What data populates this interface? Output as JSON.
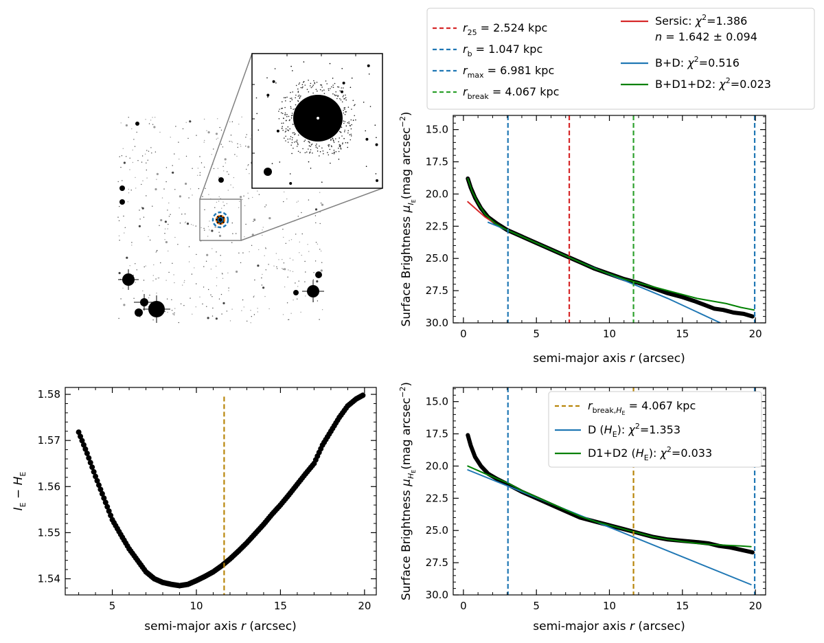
{
  "chart_data": [
    {
      "id": "image_panel",
      "type": "image",
      "description_markers": [
        "target-galaxy",
        "zoom-box",
        "inset-cutout"
      ],
      "colors": {
        "ring_orange": "#d62728",
        "ring_blue": "#1f77b4",
        "ink": "#000000"
      }
    },
    {
      "id": "sb_IE",
      "type": "line",
      "xlabel": "semi-major axis",
      "xlabel_var": "r",
      "xlabel_unit": "(arcsec)",
      "ylabel_prefix": "Surface Brightness",
      "ylabel_unit": "(mag arcsec",
      "xlim": [
        -0.7,
        20.7
      ],
      "ylim": [
        30.0,
        13.9
      ],
      "xticks": [
        0,
        5,
        10,
        15,
        20
      ],
      "xtick_labels": [
        "0",
        "5",
        "10",
        "15",
        "20"
      ],
      "yticks": [
        15.0,
        17.5,
        20.0,
        22.5,
        25.0,
        27.5,
        30.0
      ],
      "ytick_labels": [
        "15.0",
        "17.5",
        "20.0",
        "22.5",
        "25.0",
        "27.5",
        "30.0"
      ],
      "vlines": [
        {
          "name": "r_b",
          "x": 3.05,
          "color": "#1f77b4"
        },
        {
          "name": "r_25",
          "x": 7.25,
          "color": "#d62728"
        },
        {
          "name": "r_break",
          "x": 11.65,
          "color": "#2ca02c"
        },
        {
          "name": "r_max",
          "x": 19.95,
          "color": "#1f77b4"
        }
      ],
      "series": [
        {
          "name": "data",
          "color": "#000000",
          "width": 6,
          "x": [
            0.3,
            0.5,
            0.8,
            1.2,
            1.7,
            2.3,
            3.0,
            4.0,
            5.0,
            6.0,
            7.0,
            8.0,
            9.0,
            10.0,
            11.0,
            12.0,
            13.0,
            14.0,
            15.0,
            15.8,
            16.5,
            17.2,
            17.8,
            18.5,
            19.2,
            19.8
          ],
          "y": [
            18.8,
            19.5,
            20.3,
            21.1,
            21.8,
            22.3,
            22.8,
            23.3,
            23.8,
            24.3,
            24.8,
            25.3,
            25.8,
            26.2,
            26.6,
            26.9,
            27.3,
            27.7,
            28.0,
            28.3,
            28.6,
            28.9,
            29.0,
            29.2,
            29.3,
            29.5
          ]
        },
        {
          "name": "Sersic",
          "color": "#d62728",
          "width": 2,
          "x": [
            0.3,
            0.8,
            1.5,
            2.2,
            3.0,
            4.0,
            5.0,
            6.0,
            7.0,
            8.0
          ],
          "y": [
            20.6,
            21.1,
            21.8,
            22.3,
            22.8,
            23.3,
            23.8,
            24.3,
            24.8,
            25.3
          ]
        },
        {
          "name": "B+D",
          "color": "#1f77b4",
          "width": 2,
          "x": [
            1.7,
            3.0,
            5.0,
            8.0,
            11.0,
            14.0,
            17.6
          ],
          "y": [
            22.2,
            22.8,
            23.8,
            25.3,
            26.7,
            28.1,
            30.0
          ]
        },
        {
          "name": "B+D1+D2",
          "color": "#008000",
          "width": 2,
          "x": [
            0.3,
            0.6,
            1.0,
            1.5,
            2.2,
            3.0,
            4.0,
            5.0,
            6.0,
            7.0,
            8.0,
            9.0,
            10.0,
            11.0,
            12.0,
            13.0,
            14.0,
            15.0,
            16.0,
            17.0,
            18.0,
            19.0,
            19.9
          ],
          "y": [
            18.8,
            19.8,
            20.7,
            21.6,
            22.3,
            22.8,
            23.3,
            23.8,
            24.3,
            24.8,
            25.3,
            25.8,
            26.2,
            26.6,
            26.9,
            27.2,
            27.5,
            27.8,
            28.1,
            28.3,
            28.5,
            28.8,
            29.0
          ]
        }
      ],
      "legend": {
        "position": "top-right, above axes",
        "left_items": [
          {
            "var": "r",
            "sub": "25",
            "text": " = 2.524 kpc",
            "color": "#d62728",
            "style": "dashed"
          },
          {
            "var": "r",
            "sub": "b",
            "text": " = 1.047 kpc",
            "color": "#1f77b4",
            "style": "dashed"
          },
          {
            "var": "r",
            "sub": "max",
            "text": " = 6.981 kpc",
            "color": "#1f77b4",
            "style": "dashed"
          },
          {
            "var": "r",
            "sub": "break",
            "text": " = 4.067 kpc",
            "color": "#2ca02c",
            "style": "dashed"
          }
        ],
        "right_items": [
          {
            "label": "Sersic:",
            "chi_text": "=1.386",
            "line2_var": "n",
            "line2_text": " = 1.642 ± 0.094",
            "color": "#d62728"
          },
          {
            "label": "B+D:",
            "chi_text": "=0.516",
            "color": "#1f77b4"
          },
          {
            "label": "B+D1+D2:",
            "chi_text": "=0.023",
            "color": "#008000"
          }
        ]
      }
    },
    {
      "id": "color_profile",
      "type": "scatter",
      "xlabel": "semi-major axis",
      "xlabel_var": "r",
      "xlabel_unit": "(arcsec)",
      "ylabel_left": "I",
      "ylabel_minus": " − ",
      "ylabel_right": "H",
      "ylabel_sub": "E",
      "xlim": [
        2.2,
        20.7
      ],
      "ylim": [
        1.5365,
        1.5815
      ],
      "xticks": [
        5,
        10,
        15,
        20
      ],
      "xtick_labels": [
        "5",
        "10",
        "15",
        "20"
      ],
      "yticks": [
        1.54,
        1.55,
        1.56,
        1.57,
        1.58
      ],
      "ytick_labels": [
        "1.54",
        "1.55",
        "1.56",
        "1.57",
        "1.58"
      ],
      "vlines": [
        {
          "name": "r_break_HE",
          "x": 11.65,
          "color": "#b8860b"
        }
      ],
      "series": [
        {
          "name": "I_E - H_E",
          "color": "#000000",
          "x": [
            3.0,
            3.5,
            4.0,
            4.5,
            5.0,
            5.5,
            6.0,
            6.5,
            7.0,
            7.5,
            8.0,
            8.5,
            9.0,
            9.5,
            10.0,
            10.5,
            11.0,
            11.5,
            12.0,
            12.5,
            13.0,
            13.5,
            14.0,
            14.5,
            15.0,
            15.5,
            16.0,
            16.5,
            17.0,
            17.5,
            18.0,
            18.5,
            19.0,
            19.5,
            19.9
          ],
          "y": [
            1.5718,
            1.5672,
            1.5622,
            1.5575,
            1.5528,
            1.5496,
            1.5465,
            1.544,
            1.5415,
            1.54,
            1.5392,
            1.5388,
            1.5385,
            1.5388,
            1.5396,
            1.5405,
            1.5415,
            1.5428,
            1.5443,
            1.546,
            1.5478,
            1.5498,
            1.5518,
            1.554,
            1.556,
            1.5582,
            1.5605,
            1.5628,
            1.565,
            1.569,
            1.572,
            1.575,
            1.5775,
            1.579,
            1.5798
          ]
        }
      ]
    },
    {
      "id": "sb_HE",
      "type": "line",
      "xlabel": "semi-major axis",
      "xlabel_var": "r",
      "xlabel_unit": "(arcsec)",
      "ylabel_prefix": "Surface Brightness",
      "ylabel_unit": "(mag arcsec",
      "xlim": [
        -0.7,
        20.7
      ],
      "ylim": [
        30.0,
        13.9
      ],
      "xticks": [
        0,
        5,
        10,
        15,
        20
      ],
      "xtick_labels": [
        "0",
        "5",
        "10",
        "15",
        "20"
      ],
      "yticks": [
        15.0,
        17.5,
        20.0,
        22.5,
        25.0,
        27.5,
        30.0
      ],
      "ytick_labels": [
        "15.0",
        "17.5",
        "20.0",
        "22.5",
        "25.0",
        "27.5",
        "30.0"
      ],
      "vlines": [
        {
          "name": "r_b",
          "x": 3.05,
          "color": "#1f77b4"
        },
        {
          "name": "r_break_HE",
          "x": 11.65,
          "color": "#b8860b"
        },
        {
          "name": "r_max",
          "x": 19.95,
          "color": "#1f77b4"
        }
      ],
      "series": [
        {
          "name": "data",
          "color": "#000000",
          "width": 6,
          "x": [
            0.3,
            0.5,
            0.8,
            1.2,
            1.7,
            2.3,
            3.0,
            4.0,
            5.0,
            6.0,
            7.0,
            8.0,
            9.0,
            10.0,
            11.0,
            12.0,
            13.0,
            14.0,
            15.0,
            16.0,
            16.8,
            17.5,
            18.2,
            19.0,
            19.8
          ],
          "y": [
            17.6,
            18.4,
            19.3,
            20.0,
            20.6,
            21.0,
            21.4,
            22.0,
            22.5,
            23.0,
            23.5,
            24.0,
            24.3,
            24.6,
            24.9,
            25.2,
            25.5,
            25.7,
            25.8,
            25.9,
            26.0,
            26.2,
            26.3,
            26.5,
            26.7
          ]
        },
        {
          "name": "D",
          "color": "#1f77b4",
          "width": 2,
          "x": [
            0.3,
            19.7
          ],
          "y": [
            20.3,
            29.2
          ]
        },
        {
          "name": "D1+D2",
          "color": "#008000",
          "width": 2,
          "x": [
            0.3,
            1.5,
            3.0,
            4.0,
            5.0,
            6.0,
            7.0,
            8.0,
            9.0,
            10.0,
            11.0,
            12.0,
            13.0,
            14.0,
            15.0,
            16.0,
            17.0,
            18.0,
            19.0,
            19.7
          ],
          "y": [
            20.0,
            20.6,
            21.3,
            21.9,
            22.4,
            22.9,
            23.4,
            23.9,
            24.3,
            24.6,
            24.9,
            25.2,
            25.5,
            25.7,
            25.85,
            26.0,
            26.1,
            26.15,
            26.2,
            26.25
          ]
        }
      ],
      "legend": {
        "position": "upper-right, inside axes",
        "items": [
          {
            "var": "r",
            "sub": "break,",
            "sub2": "H",
            "sub2sub": "E",
            "text": " = 4.067 kpc",
            "color": "#b8860b",
            "style": "dashed"
          },
          {
            "label": "D (",
            "var": "H",
            "sub": "E",
            "close": "):",
            "chi_text": "=1.353",
            "color": "#1f77b4"
          },
          {
            "label": "D1+D2 (",
            "var": "H",
            "sub": "E",
            "close": "):",
            "chi_text": "=0.033",
            "color": "#008000"
          }
        ]
      }
    }
  ]
}
